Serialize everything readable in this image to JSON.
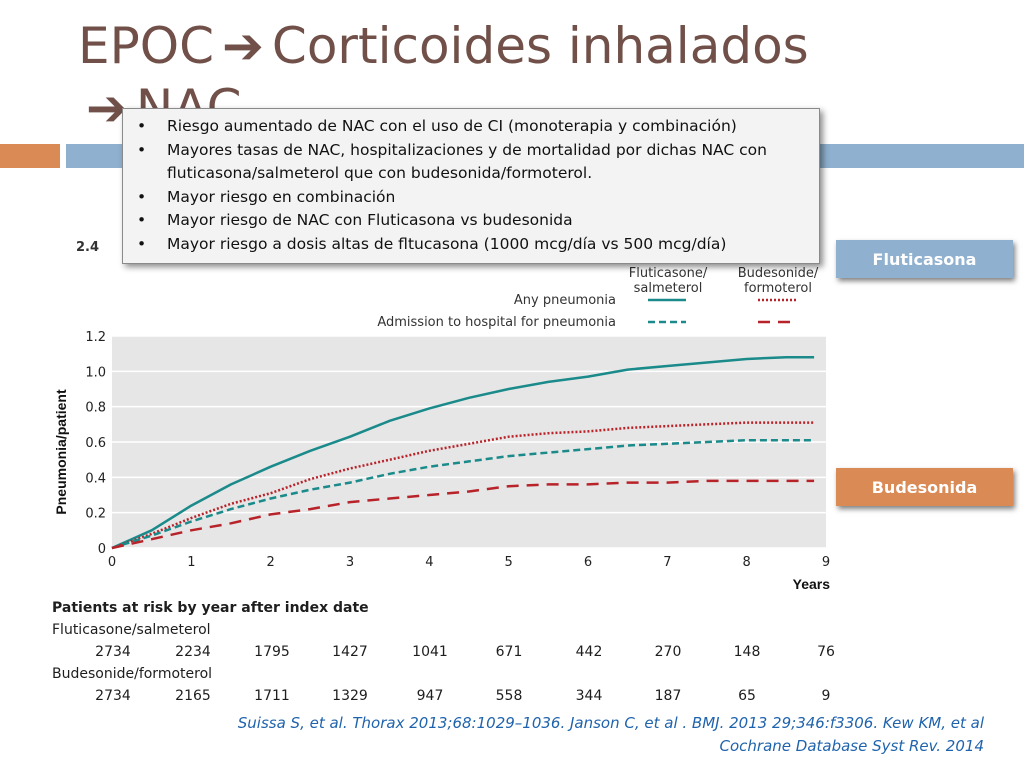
{
  "slide": {
    "title_part1": "EPOC",
    "title_arrow": "➔",
    "title_part2": "Corticoides inhalados",
    "title_line2_arrow": "➔",
    "title_line2": "NAC",
    "bullets": [
      "Riesgo aumentado de NAC con el uso de CI (monoterapia y combinación)",
      "Mayores tasas de NAC, hospitalizaciones y de mortalidad por dichas NAC  con fluticasona/salmeterol que con budesonida/formoterol.",
      "Mayor riesgo en combinación",
      "Mayor riesgo de NAC con Fluticasona vs budesonida",
      "Mayor riesgo a dosis altas de fltucasona (1000 mcg/día vs 500 mcg/día)"
    ],
    "label_fluticasona": "Fluticasona",
    "label_budesonida": "Budesonida",
    "partial_label": "2.4",
    "reference_line1": "Suissa S, et al. Thorax 2013;68:1029–1036. Janson C, et al . BMJ. 2013 29;346:f3306. Kew KM, et al",
    "reference_line2": "Cochrane Database Syst Rev. 2014"
  },
  "chart_data": {
    "type": "line",
    "xlabel": "Years",
    "ylabel": "Pneumonia/patient",
    "xlim": [
      0,
      9
    ],
    "ylim": [
      0,
      1.2
    ],
    "xticks": [
      "0",
      "1",
      "2",
      "3",
      "4",
      "5",
      "6",
      "7",
      "8",
      "9"
    ],
    "yticks": [
      "0",
      "0.2",
      "0.4",
      "0.6",
      "0.8",
      "1.0",
      "1.2"
    ],
    "legend": {
      "col1": "Fluticasone/\nsalmeterol",
      "col2": "Budesonide/\nformoterol",
      "row1": "Any pneumonia",
      "row2": "Admission to hospital for pneumonia"
    },
    "series": [
      {
        "name": "Fluticasone/salmeterol — Any pneumonia",
        "color": "#1a8a8a",
        "dash": "solid",
        "x": [
          0,
          0.5,
          1,
          1.5,
          2,
          2.5,
          3,
          3.5,
          4,
          4.5,
          5,
          5.5,
          6,
          6.5,
          7,
          7.5,
          8,
          8.5,
          8.85
        ],
        "y": [
          0,
          0.1,
          0.24,
          0.36,
          0.46,
          0.55,
          0.63,
          0.72,
          0.79,
          0.85,
          0.9,
          0.94,
          0.97,
          1.01,
          1.03,
          1.05,
          1.07,
          1.08,
          1.08
        ]
      },
      {
        "name": "Budesonide/formoterol — Any pneumonia",
        "color": "#b8232a",
        "dash": "dotted",
        "x": [
          0,
          0.5,
          1,
          1.5,
          2,
          2.5,
          3,
          3.5,
          4,
          4.5,
          5,
          5.5,
          6,
          6.5,
          7,
          7.5,
          8,
          8.5,
          8.85
        ],
        "y": [
          0,
          0.08,
          0.17,
          0.25,
          0.31,
          0.39,
          0.45,
          0.5,
          0.55,
          0.59,
          0.63,
          0.65,
          0.66,
          0.68,
          0.69,
          0.7,
          0.71,
          0.71,
          0.71
        ]
      },
      {
        "name": "Fluticasone/salmeterol — Admission to hospital for pneumonia",
        "color": "#1a8a8a",
        "dash": "dashed",
        "x": [
          0,
          0.5,
          1,
          1.5,
          2,
          2.5,
          3,
          3.5,
          4,
          4.5,
          5,
          5.5,
          6,
          6.5,
          7,
          7.5,
          8,
          8.5,
          8.85
        ],
        "y": [
          0,
          0.07,
          0.15,
          0.22,
          0.28,
          0.33,
          0.37,
          0.42,
          0.46,
          0.49,
          0.52,
          0.54,
          0.56,
          0.58,
          0.59,
          0.6,
          0.61,
          0.61,
          0.61
        ]
      },
      {
        "name": "Budesonide/formoterol — Admission to hospital for pneumonia",
        "color": "#b8232a",
        "dash": "longdash",
        "x": [
          0,
          0.5,
          1,
          1.5,
          2,
          2.5,
          3,
          3.5,
          4,
          4.5,
          5,
          5.5,
          6,
          6.5,
          7,
          7.5,
          8,
          8.5,
          8.85
        ],
        "y": [
          0,
          0.05,
          0.1,
          0.14,
          0.19,
          0.22,
          0.26,
          0.28,
          0.3,
          0.32,
          0.35,
          0.36,
          0.36,
          0.37,
          0.37,
          0.38,
          0.38,
          0.38,
          0.38
        ]
      }
    ],
    "risk_table": {
      "title": "Patients at risk by year after index date",
      "rows": [
        {
          "name": "Fluticasone/salmeterol",
          "values": [
            "2734",
            "2234",
            "1795",
            "1427",
            "1041",
            "671",
            "442",
            "270",
            "148",
            "76"
          ]
        },
        {
          "name": "Budesonide/formoterol",
          "values": [
            "2734",
            "2165",
            "1711",
            "1329",
            "947",
            "558",
            "344",
            "187",
            "65",
            "9"
          ]
        }
      ]
    }
  },
  "colors": {
    "title": "#705048",
    "accent_orange": "#d98a55",
    "accent_blue": "#8fb0cf",
    "teal": "#1a8a8a",
    "red": "#b8232a",
    "reference": "#1f63ad"
  }
}
